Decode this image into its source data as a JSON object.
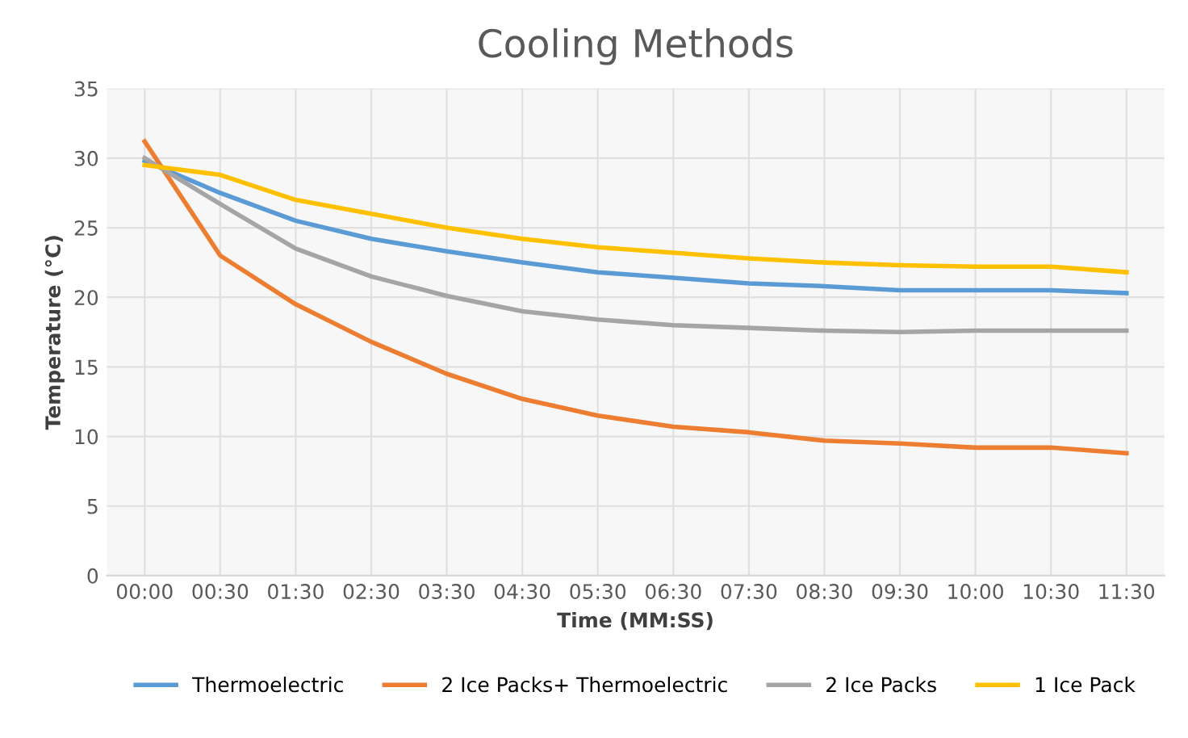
{
  "chart_data": {
    "type": "line",
    "title": "Cooling Methods",
    "xlabel": "Time (MM:SS)",
    "ylabel": "Temperature (°C)",
    "categories": [
      "00:00",
      "00:30",
      "01:30",
      "02:30",
      "03:30",
      "04:30",
      "05:30",
      "06:30",
      "07:30",
      "08:30",
      "09:30",
      "10:00",
      "10:30",
      "11:30"
    ],
    "series": [
      {
        "name": "Thermoelectric",
        "color": "#5b9bd5",
        "values": [
          29.8,
          27.5,
          25.5,
          24.2,
          23.3,
          22.5,
          21.8,
          21.4,
          21.0,
          20.8,
          20.5,
          20.5,
          20.5,
          20.3
        ]
      },
      {
        "name": "2 Ice Packs+ Thermoelectric",
        "color": "#ed7d31",
        "values": [
          31.2,
          23.0,
          19.5,
          16.8,
          14.5,
          12.7,
          11.5,
          10.7,
          10.3,
          9.7,
          9.5,
          9.2,
          9.2,
          8.8
        ]
      },
      {
        "name": "2 Ice Packs",
        "color": "#a5a5a5",
        "values": [
          30.0,
          26.7,
          23.5,
          21.5,
          20.1,
          19.0,
          18.4,
          18.0,
          17.8,
          17.6,
          17.5,
          17.6,
          17.6,
          17.6
        ]
      },
      {
        "name": "1 Ice Pack",
        "color": "#ffc000",
        "values": [
          29.5,
          28.8,
          27.0,
          26.0,
          25.0,
          24.2,
          23.6,
          23.2,
          22.8,
          22.5,
          22.3,
          22.2,
          22.2,
          21.8
        ]
      }
    ],
    "ylim": [
      0,
      35
    ],
    "yticks": [
      0,
      5,
      10,
      15,
      20,
      25,
      30,
      35
    ],
    "grid": true,
    "legend": "bottom",
    "marker": "none",
    "line_style": "solid"
  }
}
